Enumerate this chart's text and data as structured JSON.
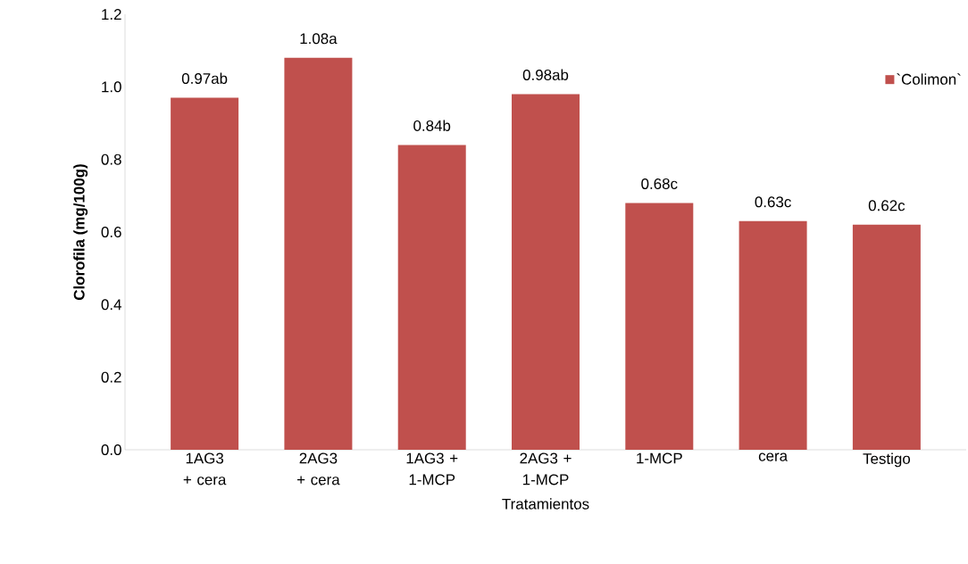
{
  "chart_data": {
    "type": "bar",
    "xlabel": "Tratamientos",
    "ylabel": "Clorofila (mg/100g)",
    "categories": [
      "1AG3 + cera",
      "2AG3 + cera",
      "1AG3 + 1-MCP",
      "2AG3 + 1-MCP",
      "1-MCP",
      "cera",
      "Testigo"
    ],
    "series": [
      {
        "name": "`Colimon`",
        "color": "#c0504d",
        "values": [
          0.97,
          1.08,
          0.84,
          0.98,
          0.68,
          0.63,
          0.62
        ],
        "value_labels": [
          "0.97ab",
          "1.08a",
          "0.84b",
          "0.98ab",
          "0.68c",
          "0.63c",
          "0.62c"
        ]
      }
    ],
    "ylim": [
      0,
      1.2
    ],
    "yticks": [
      {
        "value": 0,
        "label": "0.0"
      },
      {
        "value": 0.2,
        "label": "0.2"
      },
      {
        "value": 0.4,
        "label": "0.4"
      },
      {
        "value": 0.6,
        "label": "0.6"
      },
      {
        "value": 0.8,
        "label": "0.8"
      },
      {
        "value": 1.0,
        "label": "1.0"
      },
      {
        "value": 1.2,
        "label": "1.2"
      }
    ],
    "grid": false,
    "legend": "top right"
  }
}
